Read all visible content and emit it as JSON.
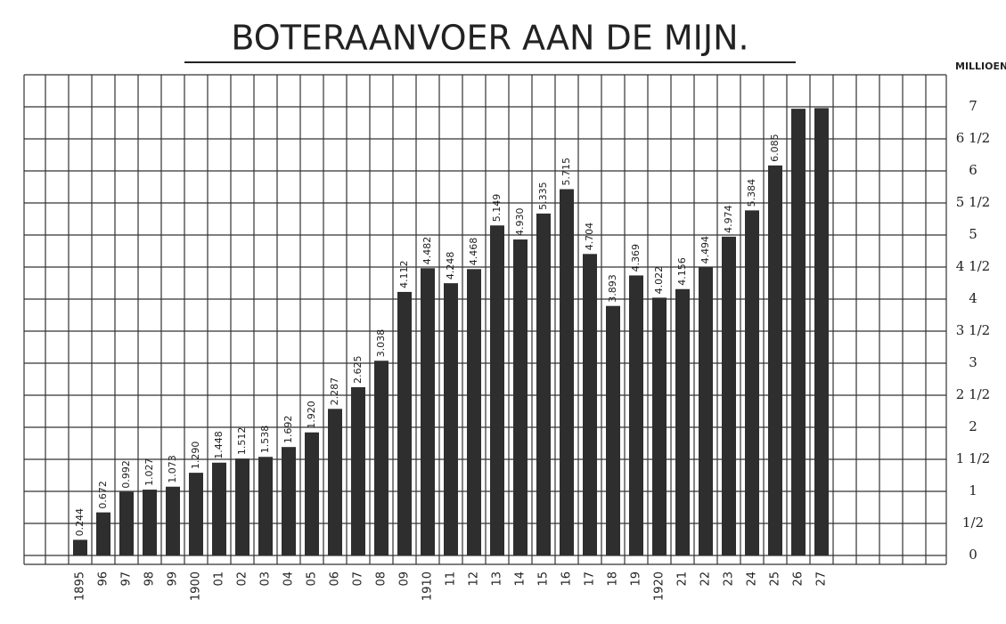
{
  "chart_data": {
    "type": "bar",
    "title": "BOTERAANVOER AAN DE MIJN.",
    "y_label": "MILLIOEN K.G.",
    "categories": [
      "1895",
      "96",
      "97",
      "98",
      "99",
      "1900",
      "01",
      "02",
      "03",
      "04",
      "05",
      "06",
      "07",
      "08",
      "09",
      "1910",
      "11",
      "12",
      "13",
      "14",
      "15",
      "16",
      "17",
      "18",
      "19",
      "1920",
      "21",
      "22",
      "23",
      "24",
      "25",
      "26",
      "27"
    ],
    "values": [
      0.244,
      0.672,
      0.992,
      1.027,
      1.073,
      1.29,
      1.448,
      1.512,
      1.538,
      1.692,
      1.92,
      2.287,
      2.625,
      3.038,
      4.112,
      4.482,
      4.248,
      4.468,
      5.149,
      4.93,
      5.335,
      5.715,
      4.704,
      3.893,
      4.369,
      4.022,
      4.156,
      4.494,
      4.974,
      5.384,
      6.085,
      6.97,
      6.98
    ],
    "value_labels": [
      "0.244",
      "0.672",
      "0.992",
      "1.027",
      "1.073",
      "1.290",
      "1.448",
      "1.512",
      "1.538",
      "1.692",
      "1.920",
      "2.287",
      "2.625",
      "3.038",
      "4.112",
      "4.482",
      "4.248",
      "4.468",
      "5.149",
      "4.930",
      "5.335",
      "5.715",
      "4.704",
      "3.893",
      "4.369",
      "4.022",
      "4.156",
      "4.494",
      "4.974",
      "5.384",
      "6.085",
      null,
      null
    ],
    "color": "#2e2e2e",
    "ylim": [
      0,
      7.5
    ],
    "yticks": [
      0,
      {
        "value": 0.5,
        "label": "1/2"
      },
      1,
      {
        "value": 1.5,
        "label": "1 1/2"
      },
      2,
      {
        "value": 2.5,
        "label": "2 1/2"
      },
      3,
      {
        "value": 3.5,
        "label": "3 1/2"
      },
      4,
      {
        "value": 4.5,
        "label": "4 1/2"
      },
      5,
      {
        "value": 5.5,
        "label": "5 1/2"
      },
      6,
      {
        "value": 6.5,
        "label": "6 1/2"
      },
      7
    ],
    "grid": true
  }
}
